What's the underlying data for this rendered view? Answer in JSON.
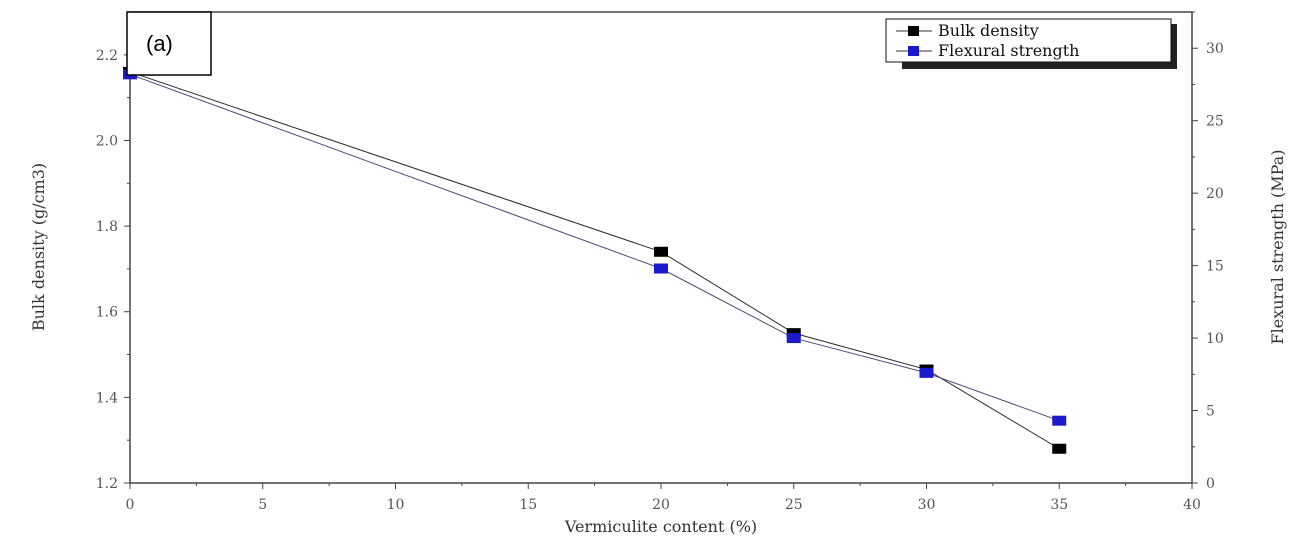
{
  "panel_label": "(a)",
  "chart_data": {
    "type": "line",
    "x": [
      0,
      20,
      25,
      30,
      35
    ],
    "xlabel": "Vermiculite content (%)",
    "xlim": [
      0,
      40
    ],
    "xticks": [
      "0",
      "5",
      "10",
      "15",
      "20",
      "25",
      "30",
      "35",
      "40"
    ],
    "ylabel_left": "Bulk density (g/cm3)",
    "ylim_left": [
      1.2,
      2.3
    ],
    "yticks_left": [
      "1.2",
      "1.4",
      "1.6",
      "1.8",
      "2.0",
      "2.2"
    ],
    "ylabel_right": "Flexural strength (MPa)",
    "ylim_right": [
      0,
      32.5
    ],
    "yticks_right": [
      "0",
      "5",
      "10",
      "15",
      "20",
      "25",
      "30"
    ],
    "series": [
      {
        "name": "Bulk density",
        "axis": "left",
        "color": "#000000",
        "values": [
          2.16,
          1.74,
          1.55,
          1.465,
          1.28
        ]
      },
      {
        "name": "Flexural strength",
        "axis": "right",
        "color": "#1a1acc",
        "values": [
          28.2,
          14.8,
          10.0,
          7.6,
          4.3
        ]
      }
    ],
    "legend_position": "top-right",
    "grid": false
  }
}
